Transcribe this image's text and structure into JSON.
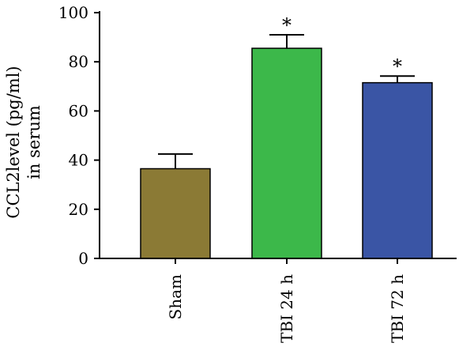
{
  "chart_data": {
    "type": "bar",
    "categories": [
      "Sham",
      "TBI 24 h",
      "TBI 72 h"
    ],
    "values": [
      36.5,
      85.5,
      71.5
    ],
    "errors": [
      6,
      5.5,
      2.7
    ],
    "annotations": [
      "",
      "*",
      "*"
    ],
    "colors": [
      "#8b7a35",
      "#3cb84a",
      "#3a55a5"
    ],
    "ylabel_lines": [
      "CCL2level (pg/ml)",
      "in serum"
    ],
    "ylim": [
      0,
      100
    ],
    "yticks": [
      "0",
      "20",
      "40",
      "60",
      "80",
      "100"
    ],
    "ytick_values": [
      0,
      20,
      40,
      60,
      80,
      100
    ]
  }
}
